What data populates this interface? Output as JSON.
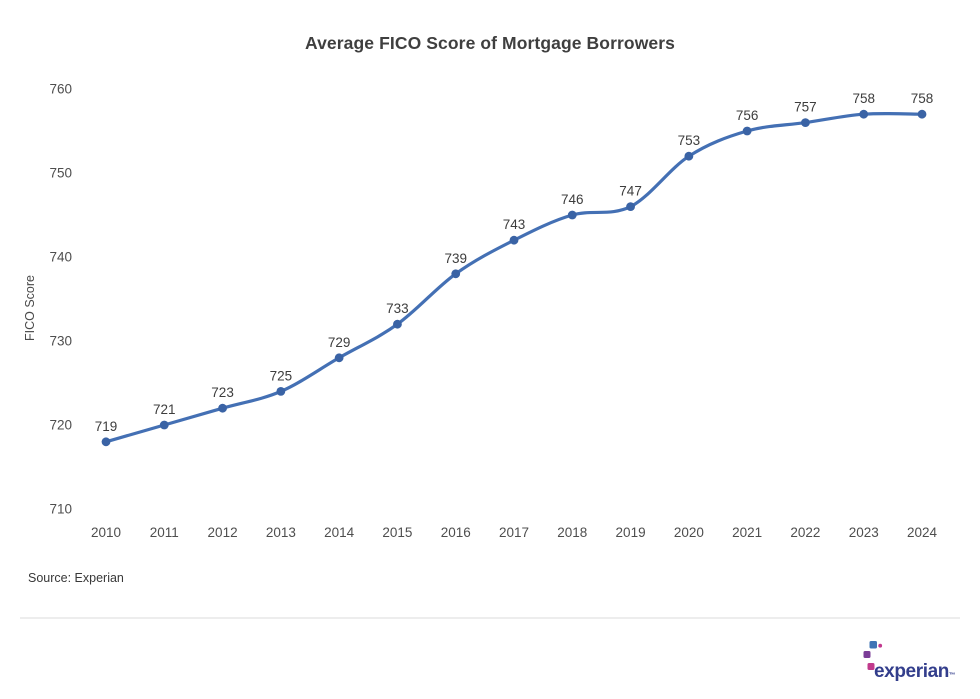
{
  "source_note": "Source: Experian",
  "logo": {
    "wordmark": "experian",
    "trademark": "™"
  },
  "colors": {
    "line": "#4470b4",
    "point": "#3a63a5",
    "title_text": "#3f3f3f",
    "axis_text": "#4e4e4e",
    "label_text": "#3d3d3d",
    "divider": "#ededed",
    "logo_text": "#333e8c",
    "logo_blue": "#3f74b5",
    "logo_purple": "#7b3d97",
    "logo_magenta": "#c2388e",
    "logo_pink": "#c13a8c"
  },
  "chart_data": {
    "type": "line",
    "title": "Average FICO Score of Mortgage Borrowers",
    "xlabel": "",
    "ylabel": "FICO Score",
    "categories": [
      "2010",
      "2011",
      "2012",
      "2013",
      "2014",
      "2015",
      "2016",
      "2017",
      "2018",
      "2019",
      "2020",
      "2021",
      "2022",
      "2023",
      "2024"
    ],
    "values": [
      719,
      721,
      723,
      725,
      729,
      733,
      739,
      743,
      746,
      747,
      753,
      756,
      757,
      758,
      758
    ],
    "ylim": [
      710,
      760
    ],
    "yticks": [
      710,
      720,
      730,
      740,
      750,
      760
    ],
    "grid": false,
    "legend": false,
    "point_labels": true
  }
}
